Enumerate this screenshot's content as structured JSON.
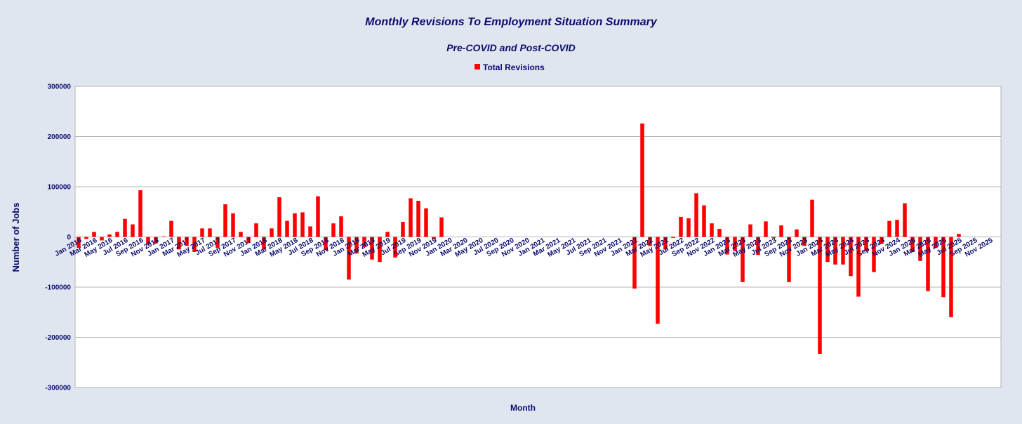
{
  "chart_data": {
    "type": "bar",
    "title": "Monthly Revisions To Employment Situation Summary",
    "subtitle": "Pre-COVID and Post-COVID",
    "xlabel": "Month",
    "ylabel": "Number of Jobs",
    "ylim": [
      -300000,
      300000
    ],
    "yticks": [
      300000,
      200000,
      100000,
      0,
      -100000,
      -200000,
      -300000
    ],
    "grid": true,
    "legend_position": "top-center",
    "colors": {
      "bar": "#ff0000",
      "background": "#dfe6ef",
      "plot": "#ffffff",
      "grid": "#b3b3b3",
      "text": "#0b0b6e"
    },
    "categories": [
      "Jan 2016",
      "Feb 2016",
      "Mar 2016",
      "Apr 2016",
      "May 2016",
      "Jun 2016",
      "Jul 2016",
      "Aug 2016",
      "Sep 2016",
      "Oct 2016",
      "Nov 2016",
      "Dec 2016",
      "Jan 2017",
      "Feb 2017",
      "Mar 2017",
      "Apr 2017",
      "May 2017",
      "Jun 2017",
      "Jul 2017",
      "Aug 2017",
      "Sep 2017",
      "Oct 2017",
      "Nov 2017",
      "Dec 2017",
      "Jan 2018",
      "Feb 2018",
      "Mar 2018",
      "Apr 2018",
      "May 2018",
      "Jun 2018",
      "Jul 2018",
      "Aug 2018",
      "Sep 2018",
      "Oct 2018",
      "Nov 2018",
      "Dec 2018",
      "Jan 2019",
      "Feb 2019",
      "Mar 2019",
      "Apr 2019",
      "May 2019",
      "Jun 2019",
      "Jul 2019",
      "Aug 2019",
      "Sep 2019",
      "Oct 2019",
      "Nov 2019",
      "Dec 2019",
      "Jan 2020",
      "Feb 2020",
      "Mar 2020",
      "Apr 2020",
      "May 2020",
      "Jun 2020",
      "Jul 2020",
      "Aug 2020",
      "Sep 2020",
      "Oct 2020",
      "Nov 2020",
      "Dec 2020",
      "Jan 2021",
      "Feb 2021",
      "Mar 2021",
      "Apr 2021",
      "May 2021",
      "Jun 2021",
      "Jul 2021",
      "Aug 2021",
      "Sep 2021",
      "Oct 2021",
      "Nov 2021",
      "Dec 2021",
      "Jan 2022",
      "Feb 2022",
      "Mar 2022",
      "Apr 2022",
      "May 2022",
      "Jun 2022",
      "Jul 2022",
      "Aug 2022",
      "Sep 2022",
      "Oct 2022",
      "Nov 2022",
      "Dec 2022",
      "Jan 2023",
      "Feb 2023",
      "Mar 2023",
      "Apr 2023",
      "May 2023",
      "Jun 2023",
      "Jul 2023",
      "Aug 2023",
      "Sep 2023",
      "Oct 2023",
      "Nov 2023",
      "Dec 2023",
      "Jan 2024",
      "Feb 2024",
      "Mar 2024",
      "Apr 2024",
      "May 2024",
      "Jun 2024",
      "Jul 2024",
      "Aug 2024",
      "Sep 2024",
      "Oct 2024",
      "Nov 2024",
      "Dec 2024",
      "Jan 2025",
      "Feb 2025",
      "Mar 2025",
      "Apr 2025",
      "May 2025",
      "Jun 2025",
      "Jul 2025",
      "Aug 2025",
      "Sep 2025",
      "Oct 2025",
      "Nov 2025",
      "Dec 2025"
    ],
    "tick_labels": [
      "Jan 2016",
      "Mar 2016",
      "May 2016",
      "Jul 2016",
      "Sep 2016",
      "Nov 2016",
      "Jan 2017",
      "Mar 2017",
      "May 2017",
      "Jul 2017",
      "Sep 2017",
      "Nov 2017",
      "Jan 2018",
      "Mar 2018",
      "May 2018",
      "Jul 2018",
      "Sep 2018",
      "Nov 2018",
      "Jan 2019",
      "Mar 2019",
      "May 2019",
      "Jul 2019",
      "Sep 2019",
      "Nov 2019",
      "Jan 2020",
      "Mar 2020",
      "May 2020",
      "Jul 2020",
      "Sep 2020",
      "Nov 2020",
      "Jan 2021",
      "Mar 2021",
      "May 2021",
      "Jul 2021",
      "Sep 2021",
      "Nov 2021",
      "Jan 2022",
      "Mar 2022",
      "May 2022",
      "Jul 2022",
      "Sep 2022",
      "Nov 2022",
      "Jan 2023",
      "Mar 2023",
      "May 2023",
      "Jul 2023",
      "Sep 2023",
      "Nov 2023",
      "Jan 2024",
      "Mar 2024",
      "May 2024",
      "Jul 2024",
      "Sep 2024",
      "Nov 2024",
      "Jan 2025",
      "Mar 2025",
      "May 2025",
      "Jul 2025",
      "Sep 2025",
      "Nov 2025"
    ],
    "series": [
      {
        "name": "Total Revisions",
        "values": [
          -22000,
          -4000,
          10000,
          -7000,
          5000,
          10000,
          36000,
          25000,
          93000,
          -15000,
          -13000,
          1000,
          32000,
          -25000,
          -18000,
          -30000,
          17000,
          17000,
          -22000,
          65000,
          47000,
          10000,
          -12000,
          27000,
          -25000,
          17000,
          79000,
          32000,
          47000,
          49000,
          21000,
          81000,
          -26000,
          27000,
          41000,
          -85000,
          -33000,
          -20000,
          -45000,
          -50000,
          10000,
          -41000,
          30000,
          77000,
          72000,
          57000,
          -4000,
          39000,
          0,
          0,
          0,
          0,
          0,
          0,
          0,
          0,
          0,
          0,
          0,
          0,
          0,
          0,
          0,
          0,
          0,
          0,
          0,
          0,
          0,
          0,
          0,
          0,
          -103000,
          226000,
          -18000,
          -173000,
          -25000,
          -2000,
          40000,
          37000,
          87000,
          63000,
          27000,
          16000,
          -35000,
          -28000,
          -90000,
          25000,
          -36000,
          31000,
          -2000,
          23000,
          -90000,
          15000,
          -18000,
          74000,
          -233000,
          -50000,
          -55000,
          -55000,
          -78000,
          -119000,
          -28000,
          -70000,
          -14000,
          32000,
          34000,
          67000,
          -30000,
          -48000,
          -108000,
          -22000,
          -120000,
          -160000,
          6000,
          0,
          0,
          0,
          0,
          0
        ]
      }
    ]
  }
}
